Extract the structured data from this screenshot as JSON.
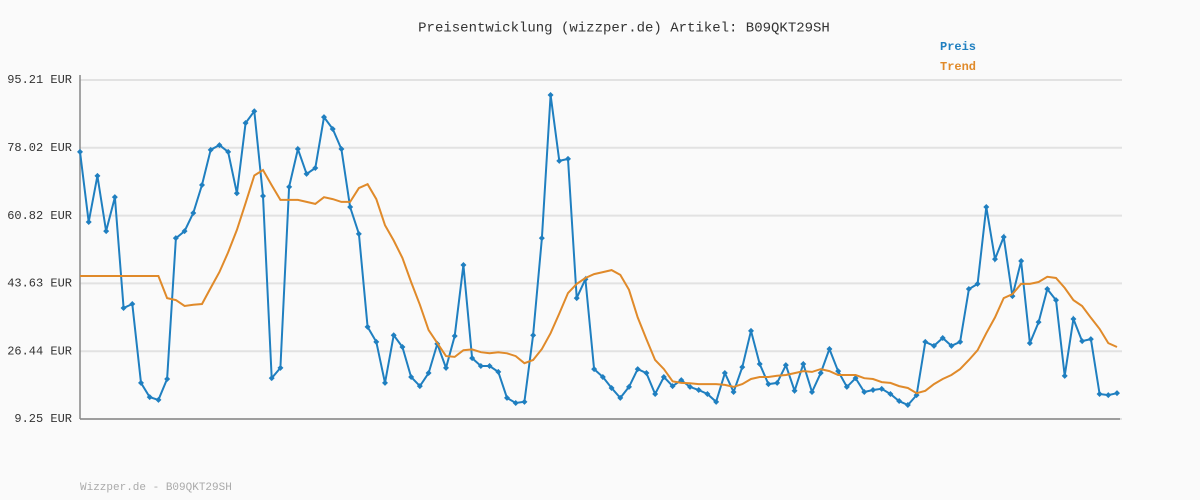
{
  "chart_data": {
    "type": "line",
    "title": "Preisentwicklung (wizzper.de) Artikel: B09QKT29SH",
    "footer": "Wizzper.de - B09QKT29SH",
    "ylim": [
      9.25,
      95.21
    ],
    "yticks": [
      {
        "value": 9.25,
        "label": "9.25 EUR"
      },
      {
        "value": 26.44,
        "label": "26.44 EUR"
      },
      {
        "value": 43.63,
        "label": "43.63 EUR"
      },
      {
        "value": 60.82,
        "label": "60.82 EUR"
      },
      {
        "value": 78.02,
        "label": "78.02 EUR"
      },
      {
        "value": 95.21,
        "label": "95.21 EUR"
      }
    ],
    "grid": true,
    "legend": "top-right",
    "series": [
      {
        "name": "Preis",
        "color": "#1f7fc0",
        "markers": true,
        "values": [
          77.0,
          59.2,
          70.9,
          56.9,
          65.5,
          37.4,
          38.4,
          18.4,
          14.8,
          14.1,
          19.4,
          55.1,
          56.9,
          61.5,
          68.6,
          77.5,
          78.7,
          77.0,
          66.5,
          84.3,
          87.3,
          65.8,
          19.6,
          22.2,
          68.1,
          77.7,
          71.4,
          72.9,
          85.8,
          82.8,
          77.7,
          63.0,
          56.2,
          32.6,
          28.8,
          18.4,
          30.5,
          27.5,
          19.9,
          17.6,
          20.9,
          28.3,
          22.2,
          30.3,
          48.3,
          24.7,
          22.7,
          22.7,
          21.2,
          14.6,
          13.3,
          13.6,
          30.5,
          55.1,
          91.4,
          74.7,
          75.2,
          39.9,
          44.7,
          21.9,
          19.9,
          17.1,
          14.6,
          17.4,
          21.9,
          20.9,
          15.6,
          19.9,
          17.6,
          19.1,
          17.4,
          16.6,
          15.6,
          13.6,
          20.9,
          16.1,
          22.4,
          31.6,
          23.2,
          18.1,
          18.4,
          22.9,
          16.4,
          23.2,
          16.1,
          20.9,
          27.0,
          21.4,
          17.4,
          19.6,
          16.1,
          16.6,
          16.9,
          15.6,
          13.8,
          12.8,
          15.3,
          28.8,
          27.8,
          29.8,
          27.8,
          28.8,
          42.2,
          43.5,
          63.0,
          49.8,
          55.4,
          40.4,
          49.3,
          28.5,
          33.8,
          42.2,
          39.4,
          20.2,
          34.6,
          29.0,
          29.5,
          15.6,
          15.3,
          15.8
        ]
      },
      {
        "name": "Trend",
        "color": "#e08a2a",
        "markers": false,
        "values": [
          45.5,
          45.5,
          45.5,
          45.5,
          45.5,
          45.5,
          45.5,
          45.5,
          45.5,
          45.5,
          39.9,
          39.4,
          37.9,
          38.2,
          38.4,
          42.5,
          46.5,
          51.5,
          57.2,
          64.0,
          71.0,
          72.4,
          68.5,
          64.8,
          64.8,
          64.8,
          64.3,
          63.8,
          65.5,
          65.0,
          64.3,
          64.3,
          67.8,
          68.8,
          65.0,
          58.4,
          54.5,
          50.1,
          44.0,
          38.2,
          31.8,
          28.5,
          25.2,
          25.0,
          26.7,
          26.9,
          26.2,
          25.9,
          26.2,
          25.9,
          25.2,
          23.4,
          24.2,
          27.0,
          31.0,
          36.0,
          41.2,
          43.5,
          45.0,
          46.0,
          46.5,
          47.0,
          45.8,
          42.0,
          35.0,
          29.5,
          24.2,
          21.9,
          18.8,
          18.4,
          18.3,
          18.1,
          18.1,
          18.1,
          17.9,
          17.4,
          18.1,
          19.4,
          19.9,
          19.9,
          20.2,
          20.4,
          20.9,
          21.4,
          21.2,
          21.9,
          21.4,
          20.4,
          20.4,
          20.4,
          19.6,
          19.4,
          18.6,
          18.4,
          17.6,
          17.1,
          15.8,
          16.4,
          18.1,
          19.4,
          20.4,
          21.9,
          24.2,
          26.7,
          31.0,
          35.0,
          39.9,
          40.9,
          43.5,
          43.5,
          44.0,
          45.3,
          45.0,
          42.5,
          39.4,
          37.9,
          34.9,
          32.1,
          28.5,
          27.5
        ]
      }
    ]
  }
}
